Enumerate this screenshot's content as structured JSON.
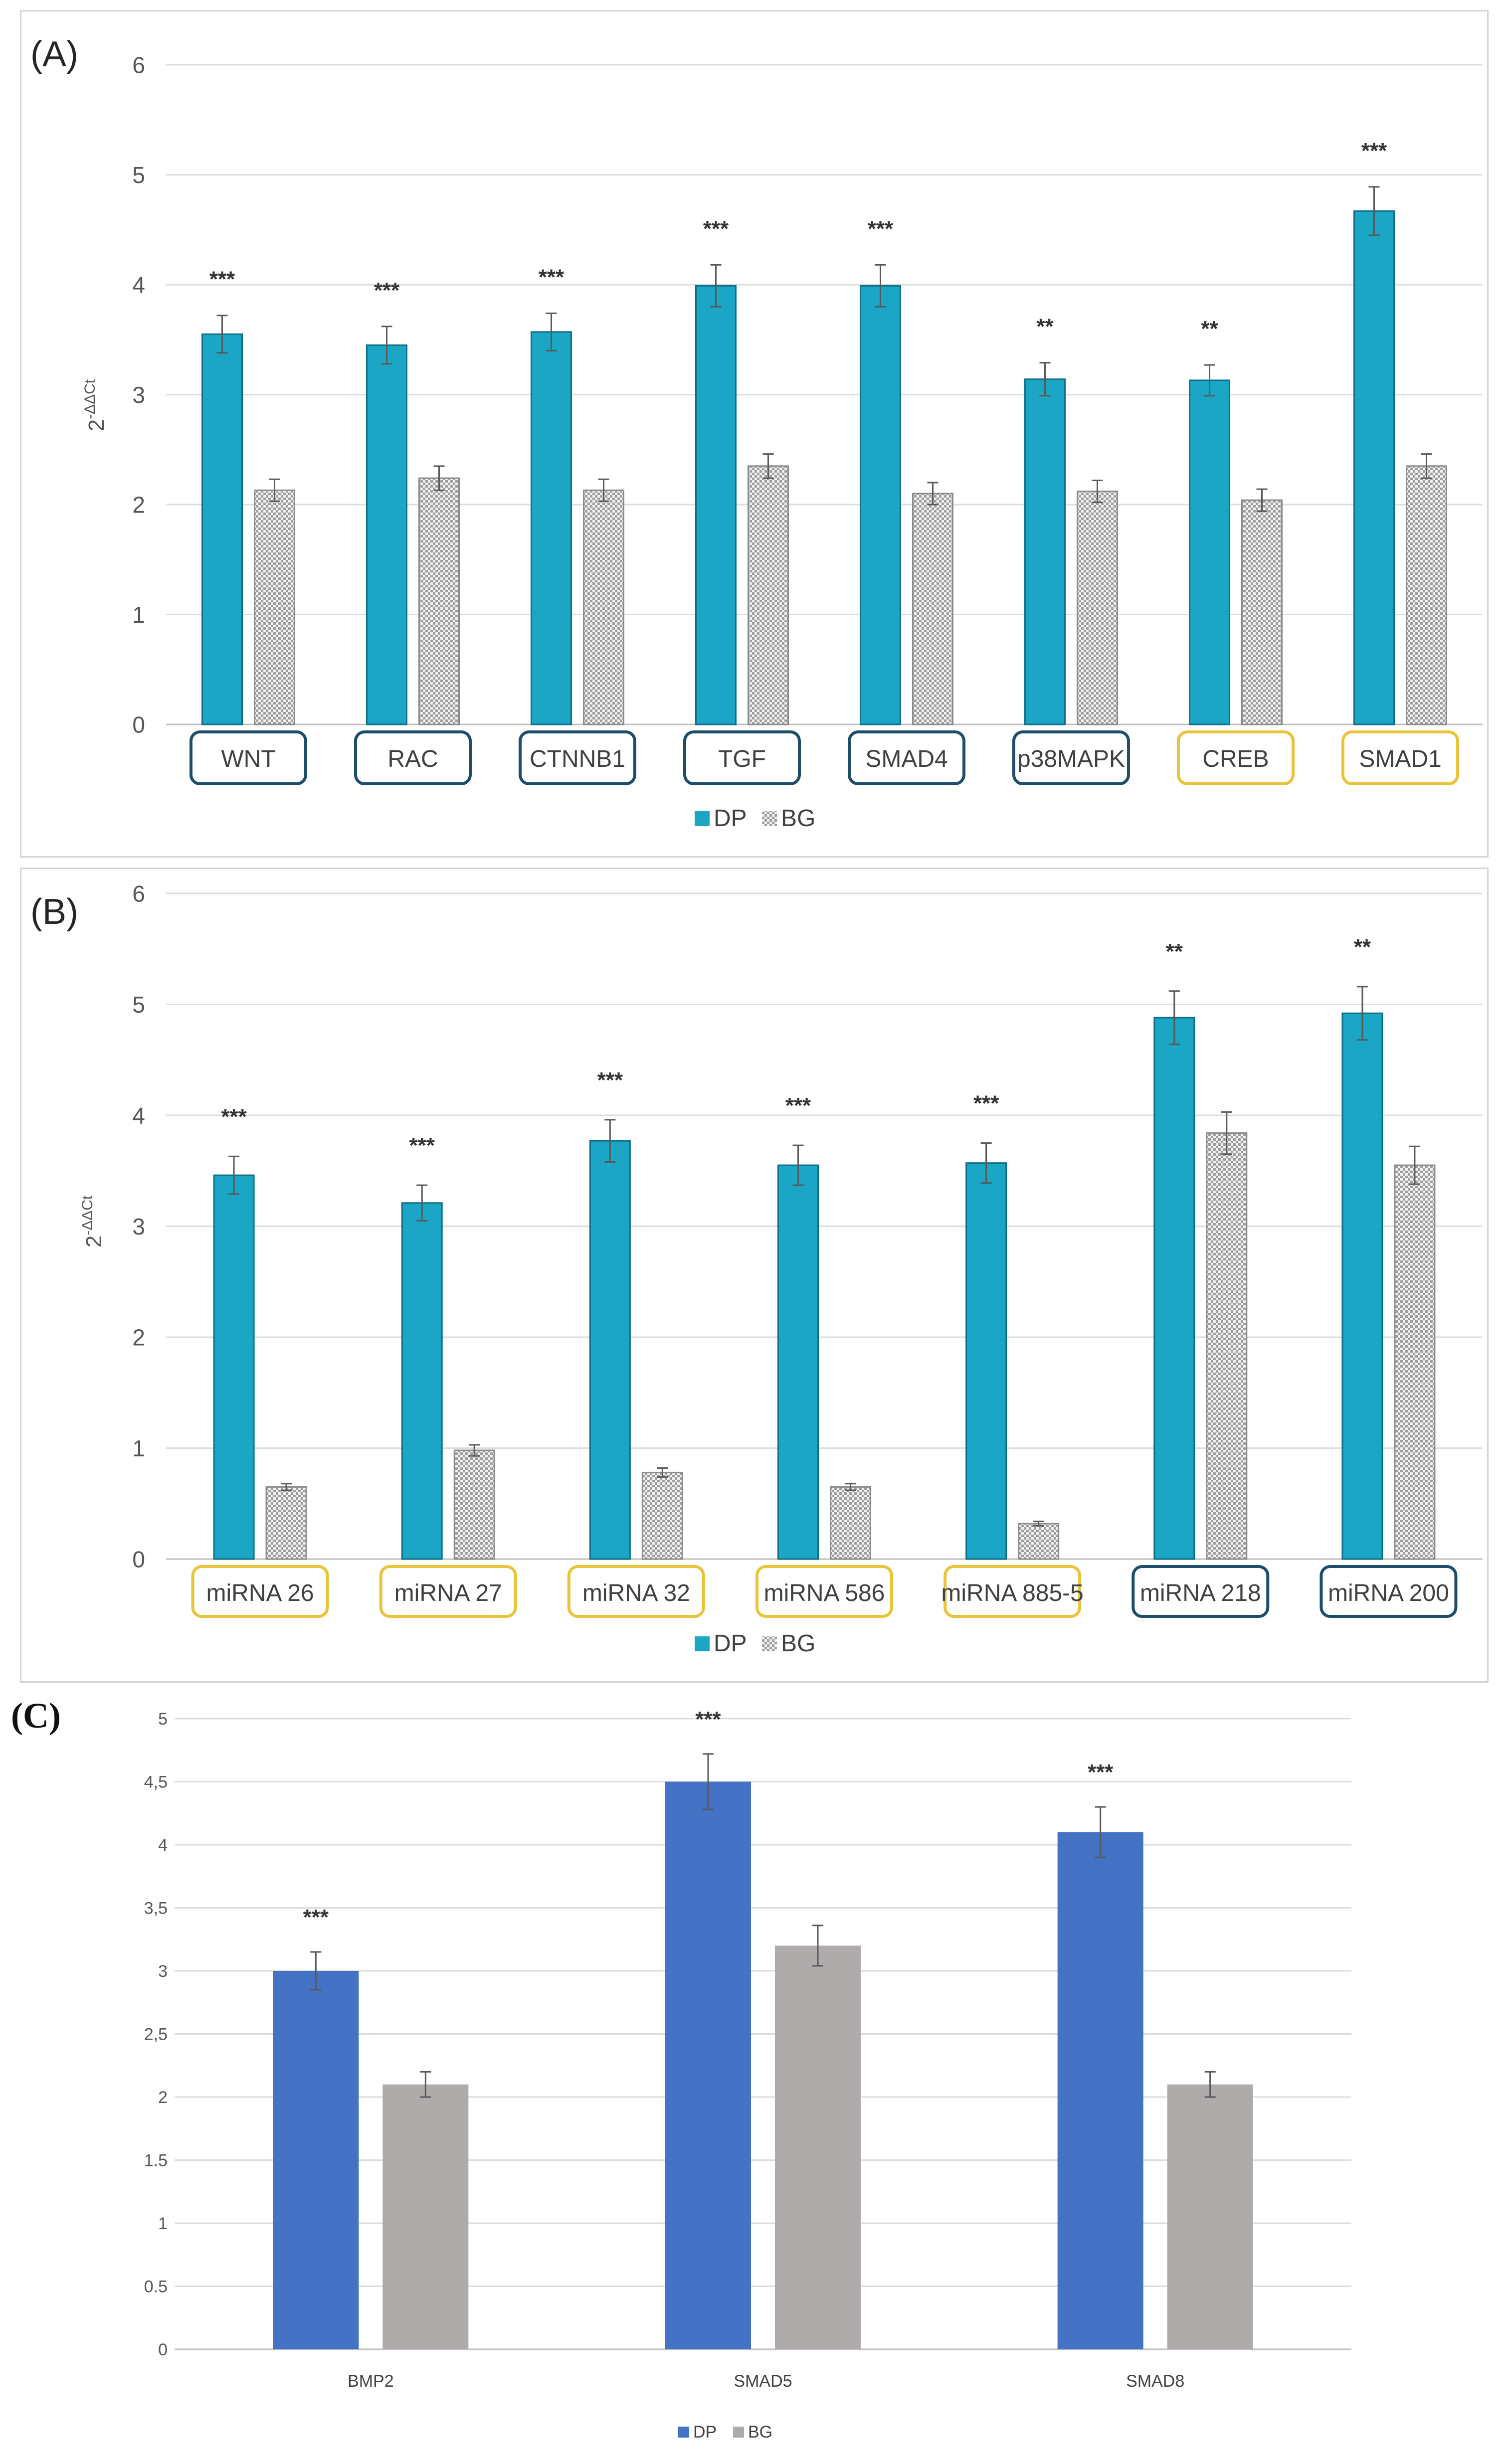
{
  "chart_data": [
    {
      "id": "A",
      "panel_label": "(A)",
      "type": "bar",
      "ylabel_base": "2",
      "ylabel_exp": "-ΔΔCt",
      "ylim": [
        0,
        6
      ],
      "yticks": [
        "0",
        "1",
        "2",
        "3",
        "4",
        "5",
        "6"
      ],
      "grid": true,
      "legend_position": "bottom-center",
      "categories": [
        "WNT",
        "RAC",
        "CTNNB1",
        "TGF",
        "SMAD4",
        "p38MAPK",
        "CREB",
        "SMAD1"
      ],
      "category_box_colors": [
        "#1e4d6b",
        "#1e4d6b",
        "#1e4d6b",
        "#1e4d6b",
        "#1e4d6b",
        "#1e4d6b",
        "#e8c43a",
        "#e8c43a"
      ],
      "significance": [
        "***",
        "***",
        "***",
        "***",
        "***",
        "**",
        "**",
        "***"
      ],
      "series": [
        {
          "name": "DP",
          "color": "#1aa6c4",
          "pattern": "solid",
          "values": [
            3.55,
            3.45,
            3.57,
            3.99,
            3.99,
            3.14,
            3.13,
            4.67
          ],
          "errors": [
            0.17,
            0.17,
            0.17,
            0.19,
            0.19,
            0.15,
            0.14,
            0.22
          ]
        },
        {
          "name": "BG",
          "color": "#bfbfbf",
          "pattern": "checker",
          "values": [
            2.13,
            2.24,
            2.13,
            2.35,
            2.1,
            2.12,
            2.04,
            2.35
          ],
          "errors": [
            0.1,
            0.11,
            0.1,
            0.11,
            0.1,
            0.1,
            0.1,
            0.11
          ]
        }
      ]
    },
    {
      "id": "B",
      "panel_label": "(B)",
      "type": "bar",
      "ylabel_base": "2",
      "ylabel_exp": "-ΔΔCt",
      "ylim": [
        0,
        6
      ],
      "yticks": [
        "0",
        "1",
        "2",
        "3",
        "4",
        "5",
        "6"
      ],
      "grid": true,
      "legend_position": "bottom-center",
      "categories": [
        "miRNA 26",
        "miRNA 27",
        "miRNA 32",
        "miRNA 586",
        "miRNA 885-5",
        "miRNA 218",
        "miRNA 200"
      ],
      "category_box_colors": [
        "#e8c43a",
        "#e8c43a",
        "#e8c43a",
        "#e8c43a",
        "#e8c43a",
        "#1e4d6b",
        "#1e4d6b"
      ],
      "significance": [
        "***",
        "***",
        "***",
        "***",
        "***",
        "**",
        "**"
      ],
      "series": [
        {
          "name": "DP",
          "color": "#1aa6c4",
          "pattern": "solid",
          "values": [
            3.46,
            3.21,
            3.77,
            3.55,
            3.57,
            4.88,
            4.92
          ],
          "errors": [
            0.17,
            0.16,
            0.19,
            0.18,
            0.18,
            0.24,
            0.24
          ]
        },
        {
          "name": "BG",
          "color": "#bfbfbf",
          "pattern": "checker",
          "values": [
            0.65,
            0.98,
            0.78,
            0.65,
            0.32,
            3.84,
            3.55
          ],
          "errors": [
            0.03,
            0.05,
            0.04,
            0.03,
            0.02,
            0.19,
            0.17
          ]
        }
      ]
    },
    {
      "id": "C",
      "panel_label": "(C)",
      "type": "bar",
      "ylabel_base": "",
      "ylabel_exp": "",
      "ylim": [
        0,
        5
      ],
      "yticks": [
        "0",
        "0.5",
        "1",
        "1.5",
        "2",
        "2,5",
        "3",
        "3,5",
        "4",
        "4,5",
        "5"
      ],
      "grid": true,
      "legend_position": "bottom-center",
      "categories": [
        "BMP2",
        "SMAD5",
        "SMAD8"
      ],
      "category_box_colors": [],
      "significance": [
        "***",
        "***",
        "***"
      ],
      "series": [
        {
          "name": "DP",
          "color": "#4472c4",
          "pattern": "solid",
          "values": [
            3.0,
            4.5,
            4.1
          ],
          "errors": [
            0.15,
            0.22,
            0.2
          ]
        },
        {
          "name": "BG",
          "color": "#afabab",
          "pattern": "solid",
          "values": [
            2.1,
            3.2,
            2.1
          ],
          "errors": [
            0.1,
            0.16,
            0.1
          ]
        }
      ]
    }
  ]
}
